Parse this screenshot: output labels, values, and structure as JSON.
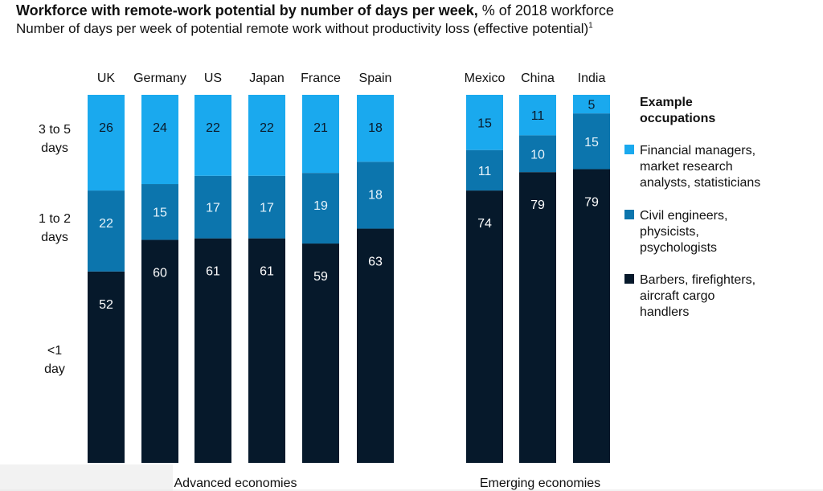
{
  "title_bold": "Workforce with remote-work potential by number of days per week,",
  "title_rest": " % of 2018 workforce",
  "subtitle": "Number of days per week of potential remote work without productivity loss (effective potential)",
  "subtitle_footnote": "1",
  "colors": {
    "three_to_five": "#1aa9ee",
    "one_to_two": "#0c75ad",
    "less_than_one": "#06192b"
  },
  "chart_data": {
    "type": "bar",
    "stacked": true,
    "orientation": "vertical",
    "categories": [
      "UK",
      "Germany",
      "US",
      "Japan",
      "France",
      "Spain",
      "Mexico",
      "China",
      "India"
    ],
    "groups": [
      {
        "label": "Advanced economies",
        "categories": [
          "UK",
          "Germany",
          "US",
          "Japan",
          "France",
          "Spain"
        ]
      },
      {
        "label": "Emerging economies",
        "categories": [
          "Mexico",
          "China",
          "India"
        ]
      }
    ],
    "series": [
      {
        "name": "<1 day",
        "values": [
          52,
          60,
          61,
          61,
          59,
          63,
          74,
          79,
          79
        ]
      },
      {
        "name": "1 to 2 days",
        "values": [
          22,
          15,
          17,
          17,
          19,
          18,
          11,
          10,
          15
        ]
      },
      {
        "name": "3 to 5 days",
        "values": [
          26,
          24,
          22,
          22,
          21,
          18,
          15,
          11,
          5
        ]
      }
    ],
    "row_labels": [
      [
        "3 to 5",
        "days"
      ],
      [
        "1 to 2",
        "days"
      ],
      [
        "<1",
        "day"
      ]
    ],
    "legend": {
      "title": [
        "Example",
        "occupations"
      ],
      "items": [
        {
          "series": "3 to 5 days",
          "lines": [
            "Financial managers,",
            "market research",
            "analysts, statisticians"
          ]
        },
        {
          "series": "1 to 2 days",
          "lines": [
            "Civil engineers,",
            "physicists,",
            "psychologists"
          ]
        },
        {
          "series": "<1 day",
          "lines": [
            "Barbers, firefighters,",
            "aircraft cargo",
            "handlers"
          ]
        }
      ],
      "position": "right"
    },
    "ylim": [
      0,
      100
    ],
    "grid": false
  }
}
